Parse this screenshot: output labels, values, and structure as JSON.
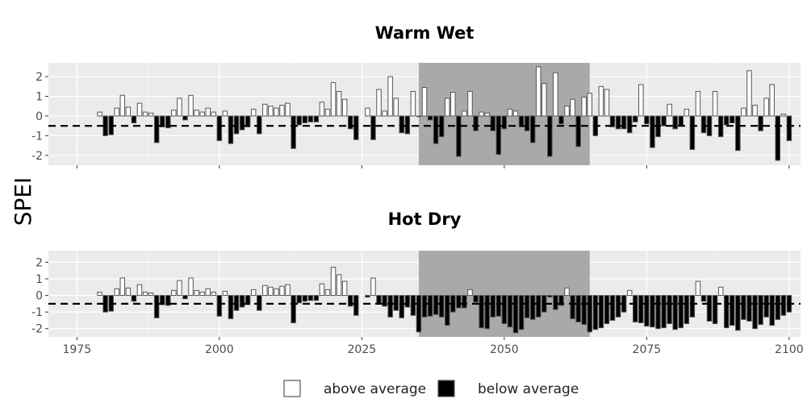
{
  "chart_data": {
    "type": "bar",
    "ylabel": "SPEI",
    "threshold": -0.5,
    "xlim": [
      1970,
      2102
    ],
    "ylim": [
      -2.5,
      2.7
    ],
    "x_ticks": [
      1975,
      2000,
      2025,
      2050,
      2075,
      2100
    ],
    "y_ticks": [
      -2,
      -1,
      0,
      1,
      2
    ],
    "y_tick_labels": [
      "-2",
      "-1",
      "0",
      "1",
      "2"
    ],
    "highlight_range": [
      2035,
      2065
    ],
    "legend": {
      "position": "bottom",
      "entries": [
        {
          "label": "above average",
          "color": "#ffffff"
        },
        {
          "label": "below average",
          "color": "#000000"
        }
      ]
    },
    "panels": [
      {
        "title": "Warm Wet",
        "show_x_tick_labels": false,
        "series": [
          {
            "x_start": 1979,
            "values": [
              0.2,
              -1.0,
              -0.95,
              0.4,
              1.05,
              0.45,
              -0.35,
              0.65,
              0.2,
              0.15,
              -1.35,
              -0.55,
              -0.6,
              0.3,
              0.9,
              -0.2,
              1.05,
              0.3,
              0.2,
              0.4,
              0.2,
              -1.25,
              0.25,
              -1.4,
              -0.9,
              -0.7,
              -0.55,
              0.35,
              -0.9,
              0.6,
              0.5,
              0.4,
              0.55,
              0.65,
              -1.65,
              -0.45,
              -0.35,
              -0.3,
              -0.3,
              0.7,
              0.35,
              1.7,
              1.25,
              0.85,
              -0.65,
              -1.2
            ]
          },
          {
            "x_start": 2026,
            "values": [
              0.4,
              -1.2,
              1.35,
              0.25,
              2.0,
              0.9,
              -0.85,
              -0.9,
              1.25,
              0.0,
              1.45,
              -0.2,
              -1.4,
              -1.05,
              0.9,
              1.2,
              -2.05,
              0.25,
              1.25,
              -0.75,
              0.2,
              0.15,
              -0.75,
              -1.95,
              -0.65,
              0.35,
              0.25,
              -0.55,
              -0.75,
              -1.35,
              2.5,
              1.65,
              -2.05,
              2.2,
              -0.4,
              0.5,
              0.85,
              -1.55,
              0.95,
              1.15,
              -1.0,
              1.5,
              1.35,
              -0.55,
              -0.65,
              -0.65,
              -0.85,
              -0.3,
              1.6,
              -0.4,
              -1.6,
              -1.05,
              -0.5,
              0.6,
              -0.65,
              -0.5,
              0.35,
              -1.7,
              1.25,
              -0.85,
              -1.0,
              1.25,
              -1.05,
              -0.45,
              -0.35,
              -1.75,
              0.4,
              2.3,
              0.55,
              -0.75,
              0.9,
              1.6,
              -2.25,
              0.1,
              -1.25
            ]
          }
        ]
      },
      {
        "title": "Hot Dry",
        "show_x_tick_labels": true,
        "series": [
          {
            "x_start": 1979,
            "values": [
              0.2,
              -1.0,
              -0.95,
              0.4,
              1.05,
              0.45,
              -0.35,
              0.65,
              0.2,
              0.15,
              -1.35,
              -0.55,
              -0.6,
              0.3,
              0.9,
              -0.2,
              1.05,
              0.3,
              0.2,
              0.4,
              0.2,
              -1.25,
              0.25,
              -1.4,
              -0.9,
              -0.7,
              -0.55,
              0.35,
              -0.9,
              0.6,
              0.5,
              0.4,
              0.55,
              0.65,
              -1.65,
              -0.45,
              -0.35,
              -0.3,
              -0.3,
              0.7,
              0.35,
              1.7,
              1.25,
              0.85,
              -0.65,
              -1.2
            ]
          },
          {
            "x_start": 2026,
            "values": [
              -0.1,
              1.05,
              -0.5,
              -0.65,
              -1.3,
              -0.9,
              -1.35,
              -0.7,
              -1.2,
              -2.2,
              -1.3,
              -1.25,
              -1.15,
              -1.3,
              -1.8,
              -1.0,
              -0.75,
              -0.75,
              0.35,
              -0.4,
              -1.95,
              -2.0,
              -1.3,
              -1.25,
              -1.7,
              -1.9,
              -2.25,
              -2.05,
              -1.35,
              -1.45,
              -1.3,
              -1.0,
              -0.1,
              -0.85,
              -0.6,
              0.45,
              -1.4,
              -1.6,
              -1.75,
              -2.2,
              -2.05,
              -1.95,
              -1.7,
              -1.5,
              -1.3,
              -1.0,
              0.3,
              -1.6,
              -1.65,
              -1.85,
              -1.9,
              -2.0,
              -1.95,
              -1.7,
              -2.05,
              -1.95,
              -1.7,
              -1.3,
              0.85,
              -0.35,
              -1.55,
              -1.7,
              0.5,
              -1.95,
              -1.8,
              -2.1,
              -1.45,
              -1.55,
              -2.0,
              -1.75,
              -1.3,
              -1.8,
              -1.45,
              -1.2,
              -1.0
            ]
          }
        ]
      }
    ]
  }
}
